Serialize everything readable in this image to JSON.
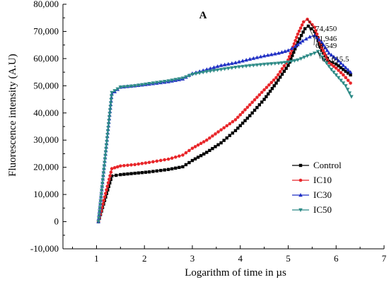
{
  "chart_data": {
    "type": "line",
    "panel_label": "A",
    "xlabel": "Logarithm of time in µs",
    "ylabel": "Fluorescence intensity (A.U)",
    "xlim": [
      0.3,
      7
    ],
    "ylim": [
      -10000,
      80000
    ],
    "x_ticks": [
      1,
      2,
      3,
      4,
      5,
      6,
      7
    ],
    "x_tick_labels": [
      "1",
      "2",
      "3",
      "4",
      "5",
      "6",
      "7"
    ],
    "y_ticks": [
      -10000,
      0,
      10000,
      20000,
      30000,
      40000,
      50000,
      60000,
      70000,
      80000
    ],
    "y_tick_labels": [
      "-10,000",
      "0",
      "10,000",
      "20,000",
      "30,000",
      "40,000",
      "50,000",
      "60,000",
      "70,000",
      "80,000"
    ],
    "legend_position": "lower-right",
    "grid": false,
    "series": [
      {
        "name": "Control",
        "color": "#000000",
        "marker": "square",
        "points": [
          [
            1.04,
            0
          ],
          [
            1.32,
            16800
          ],
          [
            1.5,
            17300
          ],
          [
            1.8,
            17800
          ],
          [
            2.1,
            18300
          ],
          [
            2.5,
            19200
          ],
          [
            2.8,
            20200
          ],
          [
            3.0,
            22500
          ],
          [
            3.3,
            25500
          ],
          [
            3.6,
            29000
          ],
          [
            3.9,
            33500
          ],
          [
            4.2,
            39000
          ],
          [
            4.5,
            45000
          ],
          [
            4.75,
            51000
          ],
          [
            5.0,
            57500
          ],
          [
            5.2,
            66000
          ],
          [
            5.35,
            71000
          ],
          [
            5.42,
            71946
          ],
          [
            5.55,
            70000
          ],
          [
            5.7,
            63000
          ],
          [
            5.85,
            59000
          ],
          [
            6.0,
            58000
          ],
          [
            6.15,
            56000
          ],
          [
            6.3,
            54000
          ]
        ]
      },
      {
        "name": "IC10",
        "color": "#e8262a",
        "marker": "circle",
        "points": [
          [
            1.04,
            0
          ],
          [
            1.32,
            19500
          ],
          [
            1.5,
            20500
          ],
          [
            1.8,
            21000
          ],
          [
            2.1,
            21800
          ],
          [
            2.5,
            23000
          ],
          [
            2.8,
            24500
          ],
          [
            3.0,
            27000
          ],
          [
            3.3,
            30000
          ],
          [
            3.6,
            33800
          ],
          [
            3.9,
            37500
          ],
          [
            4.2,
            43000
          ],
          [
            4.5,
            48500
          ],
          [
            4.75,
            53000
          ],
          [
            5.0,
            59500
          ],
          [
            5.2,
            69000
          ],
          [
            5.32,
            73500
          ],
          [
            5.4,
            74450
          ],
          [
            5.55,
            71500
          ],
          [
            5.7,
            64000
          ],
          [
            5.85,
            58500
          ],
          [
            6.0,
            56500
          ],
          [
            6.15,
            54000
          ],
          [
            6.3,
            51000
          ]
        ]
      },
      {
        "name": "IC30",
        "color": "#1f2fc4",
        "marker": "triangle-up",
        "points": [
          [
            1.04,
            0
          ],
          [
            1.32,
            47000
          ],
          [
            1.5,
            49500
          ],
          [
            1.8,
            50000
          ],
          [
            2.1,
            50600
          ],
          [
            2.5,
            51500
          ],
          [
            2.8,
            52500
          ],
          [
            3.0,
            54500
          ],
          [
            3.3,
            56000
          ],
          [
            3.6,
            57500
          ],
          [
            3.9,
            58500
          ],
          [
            4.2,
            59800
          ],
          [
            4.5,
            61000
          ],
          [
            4.8,
            62000
          ],
          [
            5.0,
            63000
          ],
          [
            5.15,
            64500
          ],
          [
            5.3,
            66500
          ],
          [
            5.45,
            68000
          ],
          [
            5.55,
            68549
          ],
          [
            5.7,
            66000
          ],
          [
            5.85,
            62000
          ],
          [
            6.0,
            60000
          ],
          [
            6.15,
            57500
          ],
          [
            6.3,
            55000
          ]
        ]
      },
      {
        "name": "IC50",
        "color": "#2e8b87",
        "marker": "triangle-down",
        "points": [
          [
            1.04,
            0
          ],
          [
            1.32,
            47500
          ],
          [
            1.5,
            49500
          ],
          [
            1.8,
            50000
          ],
          [
            2.1,
            50800
          ],
          [
            2.5,
            51800
          ],
          [
            2.8,
            52800
          ],
          [
            3.0,
            54200
          ],
          [
            3.3,
            55200
          ],
          [
            3.6,
            56000
          ],
          [
            3.9,
            56800
          ],
          [
            4.2,
            57400
          ],
          [
            4.5,
            57900
          ],
          [
            4.8,
            58300
          ],
          [
            5.0,
            58700
          ],
          [
            5.2,
            59500
          ],
          [
            5.4,
            61000
          ],
          [
            5.55,
            62000
          ],
          [
            5.62,
            62615.5
          ],
          [
            5.75,
            59500
          ],
          [
            5.9,
            56000
          ],
          [
            6.05,
            53000
          ],
          [
            6.2,
            50000
          ],
          [
            6.32,
            46000
          ]
        ]
      }
    ],
    "annotations": [
      {
        "text": "74,450",
        "series": "IC10"
      },
      {
        "text": "71,946",
        "series": "Control"
      },
      {
        "text": "68,549",
        "series": "IC30"
      },
      {
        "text": "62,615.5",
        "series": "IC50"
      }
    ]
  }
}
